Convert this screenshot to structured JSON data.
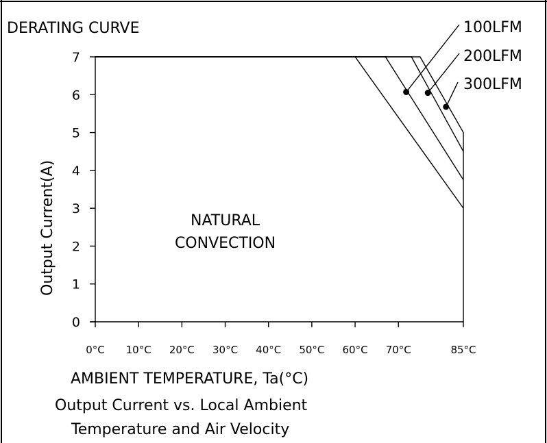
{
  "chart_data": {
    "type": "line",
    "title": "DERATING CURVE",
    "xlabel": "AMBIENT TEMPERATURE, Ta(°C)",
    "ylabel": "Output Current(A)",
    "caption_lines": [
      "Output Current vs. Local Ambient",
      "Temperature and Air Velocity"
    ],
    "x_ticks": [
      {
        "value": 0,
        "label": "0°C"
      },
      {
        "value": 10,
        "label": "10°C"
      },
      {
        "value": 20,
        "label": "20°C"
      },
      {
        "value": 30,
        "label": "30°C"
      },
      {
        "value": 40,
        "label": "40°C"
      },
      {
        "value": 50,
        "label": "50°C"
      },
      {
        "value": 60,
        "label": "60°C"
      },
      {
        "value": 70,
        "label": "70°C"
      },
      {
        "value": 85,
        "label": "85°C"
      }
    ],
    "y_ticks": [
      0,
      1,
      2,
      3,
      4,
      5,
      6,
      7
    ],
    "xlim": [
      0,
      85
    ],
    "ylim": [
      0,
      7
    ],
    "grid": false,
    "series": [
      {
        "name": "NATURAL CONVECTION",
        "x": [
          0,
          60,
          85
        ],
        "y": [
          7,
          7,
          3
        ]
      },
      {
        "name": "100LFM",
        "x": [
          0,
          67,
          85
        ],
        "y": [
          7,
          7,
          3.75
        ]
      },
      {
        "name": "200LFM",
        "x": [
          0,
          73,
          85
        ],
        "y": [
          7,
          7,
          4.5
        ]
      },
      {
        "name": "300LFM",
        "x": [
          0,
          75,
          85,
          85
        ],
        "y": [
          7,
          7,
          5,
          0
        ]
      }
    ],
    "annotations": [
      {
        "label": "100LFM",
        "point": [
          71.8,
          6.07
        ]
      },
      {
        "label": "200LFM",
        "point": [
          76.8,
          6.05
        ]
      },
      {
        "label": "300LFM",
        "point": [
          81.0,
          5.68
        ]
      },
      {
        "label": "NATURAL",
        "point": [
          30,
          2.55
        ]
      },
      {
        "label": "CONVECTION",
        "point": [
          30,
          1.95
        ]
      }
    ]
  }
}
